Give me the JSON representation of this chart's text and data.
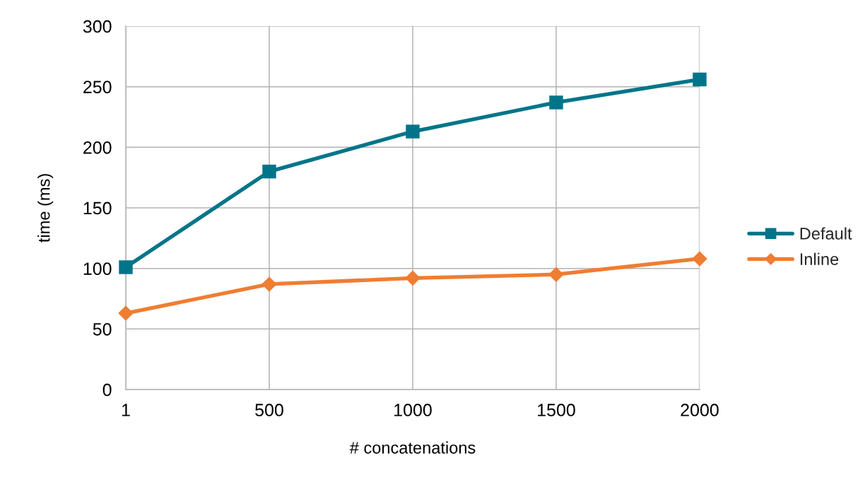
{
  "chart_data": {
    "type": "line",
    "xlabel": "# concatenations",
    "ylabel": "time (ms)",
    "categories": [
      "1",
      "500",
      "1000",
      "1500",
      "2000"
    ],
    "series": [
      {
        "name": "Default",
        "color": "#007589",
        "marker": "square",
        "values": [
          101,
          180,
          213,
          237,
          256
        ]
      },
      {
        "name": "Inline",
        "color": "#ef7d32",
        "marker": "diamond",
        "values": [
          63,
          87,
          92,
          95,
          108
        ]
      }
    ],
    "ylim": [
      0,
      300
    ],
    "yticks": [
      0,
      50,
      100,
      150,
      200,
      250,
      300
    ],
    "grid": true,
    "legend": "right",
    "line_style": "solid"
  }
}
